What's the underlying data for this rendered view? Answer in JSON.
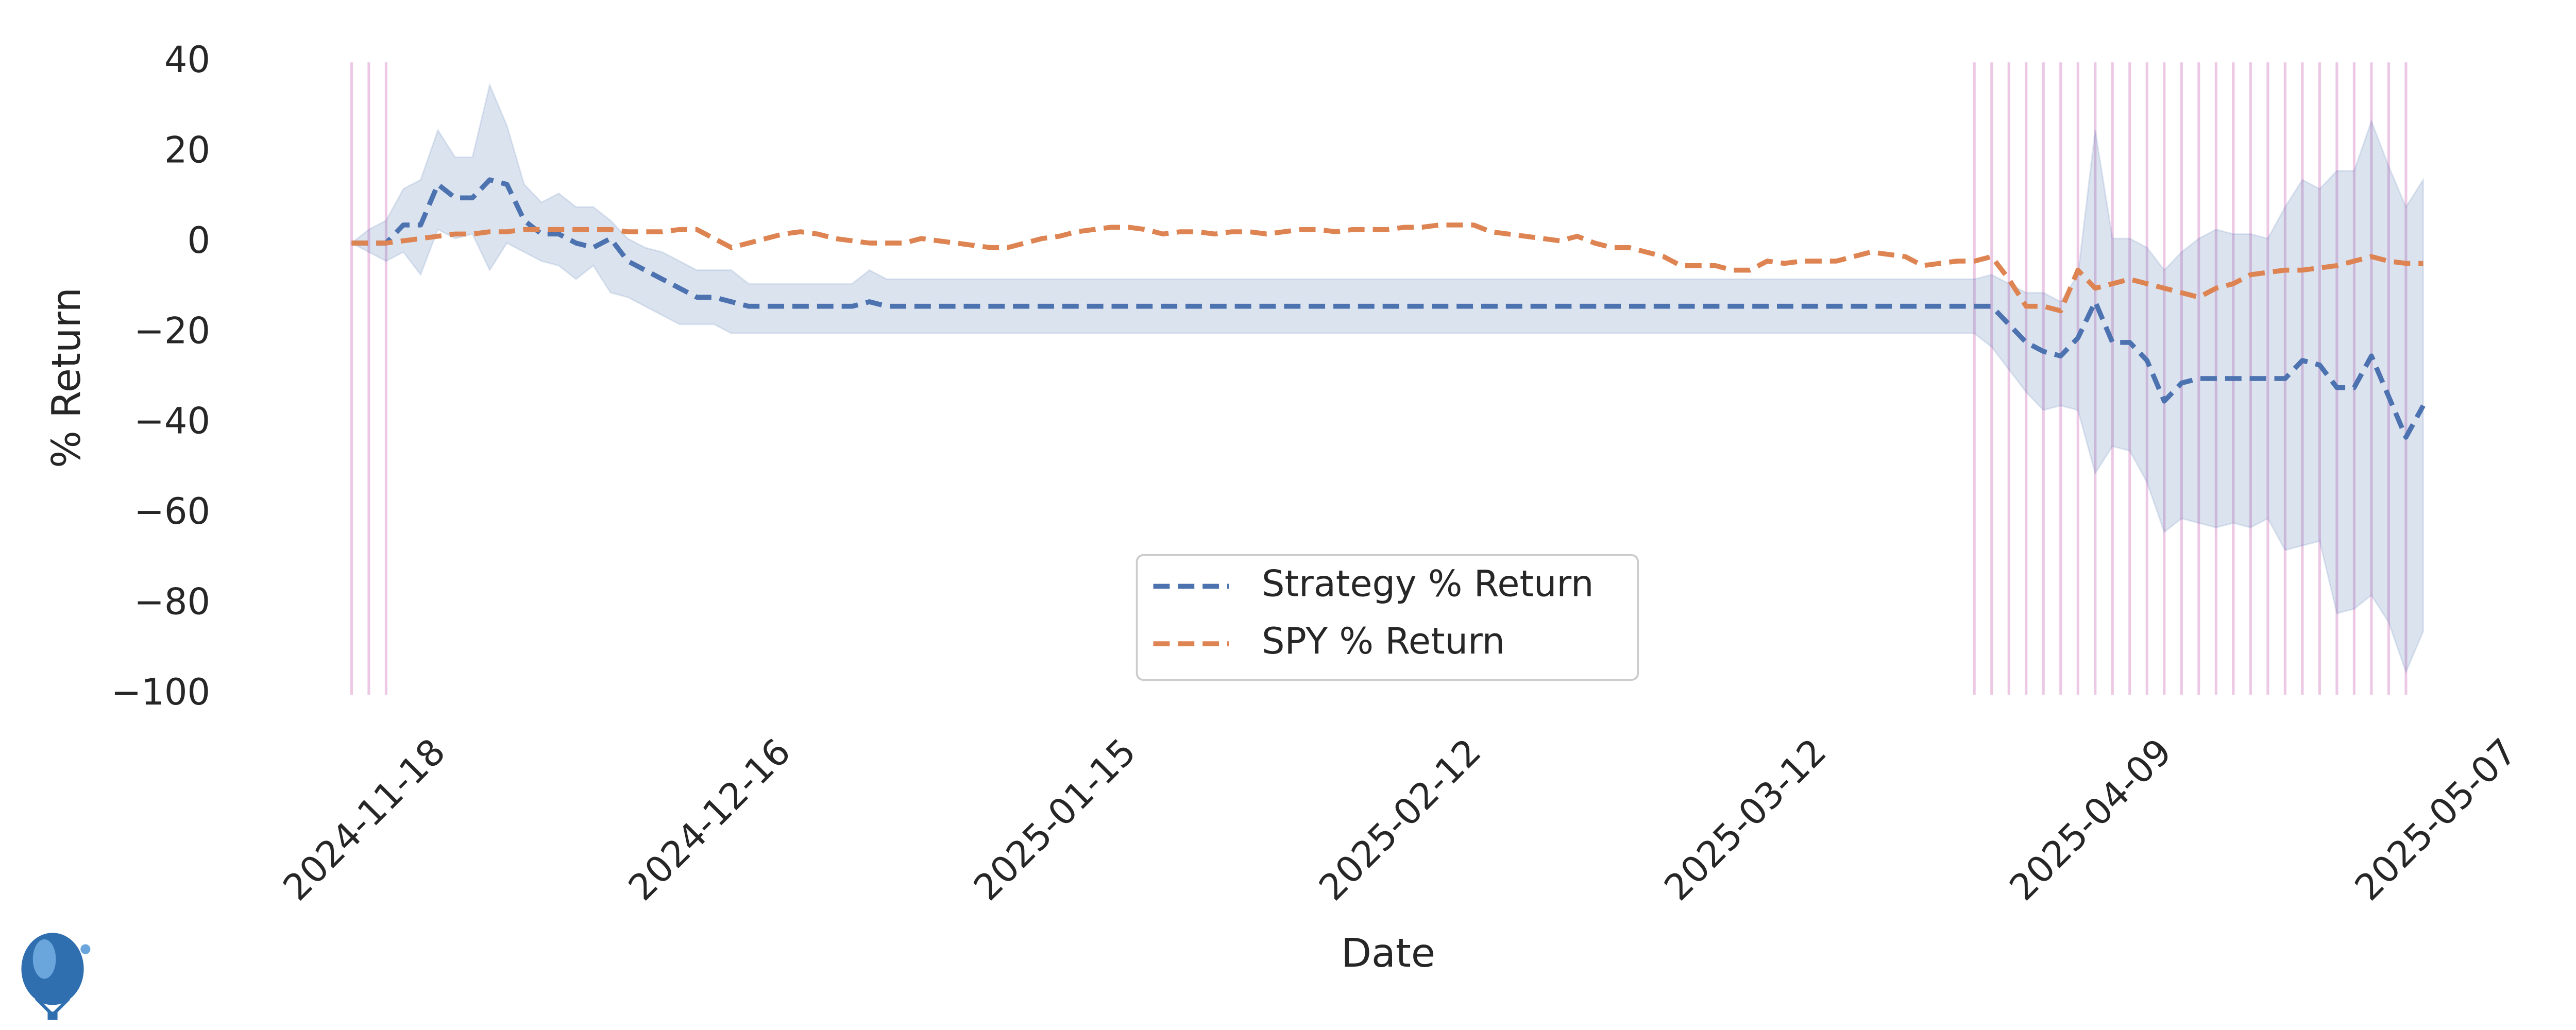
{
  "chart_data": {
    "type": "line",
    "xlabel": "Date",
    "ylabel": "% Return",
    "categories": [
      "2024-11-18",
      null,
      null,
      null,
      null,
      null,
      null,
      null,
      null,
      null,
      null,
      null,
      null,
      null,
      null,
      null,
      null,
      null,
      null,
      null,
      "2024-12-16",
      null,
      null,
      null,
      null,
      null,
      null,
      null,
      null,
      null,
      null,
      null,
      null,
      null,
      null,
      null,
      null,
      null,
      null,
      null,
      "2025-01-15",
      null,
      null,
      null,
      null,
      null,
      null,
      null,
      null,
      null,
      null,
      null,
      null,
      null,
      null,
      null,
      null,
      null,
      null,
      null,
      "2025-02-12",
      null,
      null,
      null,
      null,
      null,
      null,
      null,
      null,
      null,
      null,
      null,
      null,
      null,
      null,
      null,
      null,
      null,
      null,
      null,
      "2025-03-12",
      null,
      null,
      null,
      null,
      null,
      null,
      null,
      null,
      null,
      null,
      null,
      null,
      null,
      null,
      null,
      null,
      null,
      null,
      null,
      "2025-04-09",
      null,
      null,
      null,
      null,
      null,
      null,
      null,
      null,
      null,
      null,
      null,
      null,
      null,
      null,
      null,
      null,
      null,
      null,
      null,
      "2025-05-07"
    ],
    "series": [
      {
        "name": "Strategy % Return",
        "color": "#4c72b0",
        "dashed": true,
        "values": [
          0,
          0,
          0,
          4,
          4,
          13,
          10,
          10,
          14,
          13,
          5,
          2,
          2,
          0,
          -1,
          1,
          -4,
          -6,
          -8,
          -10,
          -12,
          -12,
          -13,
          -14,
          -14,
          -14,
          -14,
          -14,
          -14,
          -14,
          -13,
          -14,
          -14,
          -14,
          -14,
          -14,
          -14,
          -14,
          -14,
          -14,
          -14,
          -14,
          -14,
          -14,
          -14,
          -14,
          -14,
          -14,
          -14,
          -14,
          -14,
          -14,
          -14,
          -14,
          -14,
          -14,
          -14,
          -14,
          -14,
          -14,
          -14,
          -14,
          -14,
          -14,
          -14,
          -14,
          -14,
          -14,
          -14,
          -14,
          -14,
          -14,
          -14,
          -14,
          -14,
          -14,
          -14,
          -14,
          -14,
          -14,
          -14,
          -14,
          -14,
          -14,
          -14,
          -14,
          -14,
          -14,
          -14,
          -14,
          -14,
          -14,
          -14,
          -14,
          -14,
          -14,
          -18,
          -22,
          -24,
          -25,
          -21,
          -13,
          -22,
          -22,
          -26,
          -35,
          -31,
          -30,
          -30,
          -30,
          -30,
          -30,
          -30,
          -26,
          -27,
          -32,
          -32,
          -25,
          -34,
          -43,
          -36
        ],
        "upper": [
          0,
          3,
          5,
          12,
          14,
          25,
          19,
          19,
          35,
          26,
          13,
          9,
          11,
          8,
          8,
          5,
          1,
          -1,
          -2,
          -4,
          -6,
          -6,
          -6,
          -9,
          -9,
          -9,
          -9,
          -9,
          -9,
          -9,
          -6,
          -8,
          -8,
          -8,
          -8,
          -8,
          -8,
          -8,
          -8,
          -8,
          -8,
          -8,
          -8,
          -8,
          -8,
          -8,
          -8,
          -8,
          -8,
          -8,
          -8,
          -8,
          -8,
          -8,
          -8,
          -8,
          -8,
          -8,
          -8,
          -8,
          -8,
          -8,
          -8,
          -8,
          -8,
          -8,
          -8,
          -8,
          -8,
          -8,
          -8,
          -8,
          -8,
          -8,
          -8,
          -8,
          -8,
          -8,
          -8,
          -8,
          -8,
          -8,
          -8,
          -8,
          -8,
          -8,
          -8,
          -8,
          -8,
          -8,
          -8,
          -8,
          -8,
          -8,
          -8,
          -7,
          -9,
          -11,
          -11,
          -13,
          -7,
          25,
          1,
          1,
          -1,
          -6,
          -2,
          1,
          3,
          2,
          2,
          1,
          8,
          14,
          12,
          16,
          16,
          27,
          17,
          8,
          14
        ],
        "lower": [
          0,
          -2,
          -4,
          -2,
          -7,
          3,
          1,
          2,
          -6,
          0,
          -2,
          -4,
          -5,
          -8,
          -5,
          -11,
          -12,
          -14,
          -16,
          -18,
          -18,
          -18,
          -20,
          -20,
          -20,
          -20,
          -20,
          -20,
          -20,
          -20,
          -20,
          -20,
          -20,
          -20,
          -20,
          -20,
          -20,
          -20,
          -20,
          -20,
          -20,
          -20,
          -20,
          -20,
          -20,
          -20,
          -20,
          -20,
          -20,
          -20,
          -20,
          -20,
          -20,
          -20,
          -20,
          -20,
          -20,
          -20,
          -20,
          -20,
          -20,
          -20,
          -20,
          -20,
          -20,
          -20,
          -20,
          -20,
          -20,
          -20,
          -20,
          -20,
          -20,
          -20,
          -20,
          -20,
          -20,
          -20,
          -20,
          -20,
          -20,
          -20,
          -20,
          -20,
          -20,
          -20,
          -20,
          -20,
          -20,
          -20,
          -20,
          -20,
          -20,
          -20,
          -20,
          -23,
          -28,
          -33,
          -37,
          -36,
          -37,
          -51,
          -45,
          -46,
          -53,
          -64,
          -61,
          -62,
          -63,
          -62,
          -63,
          -61,
          -68,
          -67,
          -66,
          -82,
          -81,
          -78,
          -84,
          -95,
          -86
        ]
      },
      {
        "name": "SPY % Return",
        "color": "#dd8452",
        "dashed": true,
        "values": [
          0,
          0,
          0,
          0.5,
          1,
          1.5,
          2,
          2,
          2.5,
          2.5,
          3,
          3,
          3,
          3,
          3,
          3,
          2.5,
          2.5,
          2.5,
          3,
          3,
          1,
          -1,
          0,
          1,
          2,
          2.5,
          2,
          1,
          0.5,
          0,
          0,
          0,
          1,
          0.5,
          0,
          -0.5,
          -1,
          -1,
          0,
          1,
          1.5,
          2.5,
          3,
          3.5,
          3.5,
          3,
          2,
          2.5,
          2.5,
          2,
          2.5,
          2.5,
          2,
          2.5,
          3,
          3,
          2.5,
          3,
          3,
          3,
          3.5,
          3.5,
          4,
          4,
          4,
          2.5,
          2,
          1.5,
          1,
          0.5,
          1.5,
          0,
          -1,
          -1,
          -2,
          -3,
          -5,
          -5,
          -5,
          -6,
          -6,
          -4,
          -4.5,
          -4,
          -4,
          -4,
          -3,
          -2,
          -2.5,
          -3,
          -5,
          -4.5,
          -4,
          -4,
          -3,
          -8,
          -14,
          -14,
          -15,
          -6,
          -10,
          -9,
          -8,
          -9,
          -10,
          -11,
          -12,
          -10,
          -9,
          -7,
          -6.5,
          -6,
          -6,
          -5.5,
          -5,
          -4,
          -3,
          -4,
          -4.5,
          -4.5
        ]
      }
    ],
    "vlines": [
      0,
      1,
      2,
      94,
      95,
      96,
      97,
      98,
      99,
      100,
      101,
      102,
      103,
      104,
      105,
      106,
      107,
      108,
      109,
      110,
      111,
      112,
      113,
      114,
      115,
      116,
      117,
      118,
      119
    ],
    "vline_color": "#ecc8e4",
    "band_color": "#4c72b0",
    "ylim": [
      -100,
      40
    ],
    "yticks": [
      40,
      20,
      0,
      {
        "value": -20,
        "label": "−20"
      },
      {
        "value": -40,
        "label": "−40"
      },
      {
        "value": -60,
        "label": "−60"
      },
      {
        "value": -80,
        "label": "−80"
      },
      {
        "value": -100,
        "label": "−100"
      }
    ],
    "grid": false,
    "legend": "lower center"
  }
}
